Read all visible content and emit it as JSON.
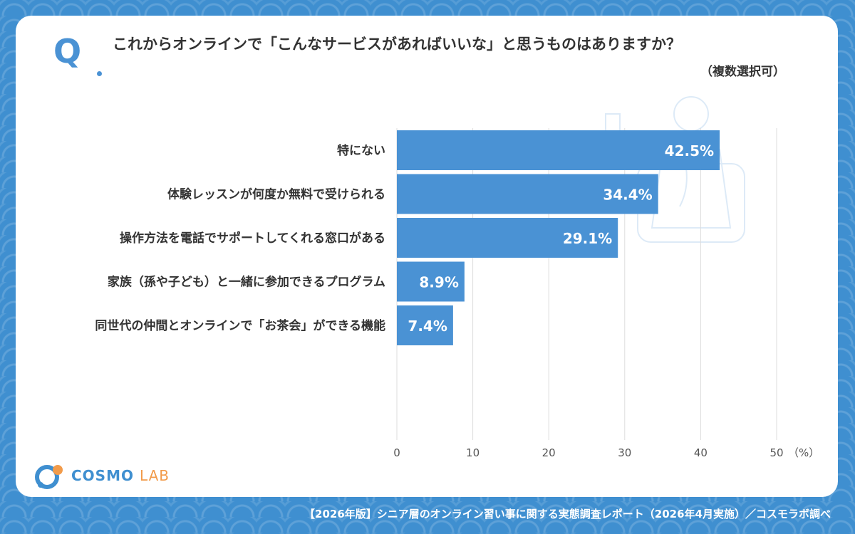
{
  "question": {
    "mark": "Q",
    "text": "これからオンラインで「こんなサービスがあればいいな」と思うものはありますか？",
    "note": "（複数選択可）"
  },
  "chart_data": {
    "type": "bar",
    "orientation": "horizontal",
    "categories": [
      "特にない",
      "体験レッスンが何度か無料で受けられる",
      "操作方法を電話でサポートしてくれる窓口がある",
      "家族（孫や子ども）と一緒に参加できるプログラム",
      "同世代の仲間とオンラインで「お茶会」ができる機能"
    ],
    "values": [
      42.5,
      34.4,
      29.1,
      8.9,
      7.4
    ],
    "value_labels": [
      "42.5%",
      "34.4%",
      "29.1%",
      "8.9%",
      "7.4%"
    ],
    "xlim": [
      0,
      50
    ],
    "xticks": [
      "0",
      "10",
      "20",
      "30",
      "40",
      "50"
    ],
    "xunit": "（%）",
    "grid": true,
    "bar_color": "#4a92d4"
  },
  "logo": {
    "brand_main": "COSMO",
    "brand_sub": "LAB"
  },
  "footer": "【2026年版】シニア層のオンライン習い事に関する実態調査レポート（2026年4月実施）／コスモラボ調べ",
  "colors": {
    "background": "#3f8fd0",
    "accent": "#4a92d4",
    "logo_orange": "#f29b4a"
  }
}
